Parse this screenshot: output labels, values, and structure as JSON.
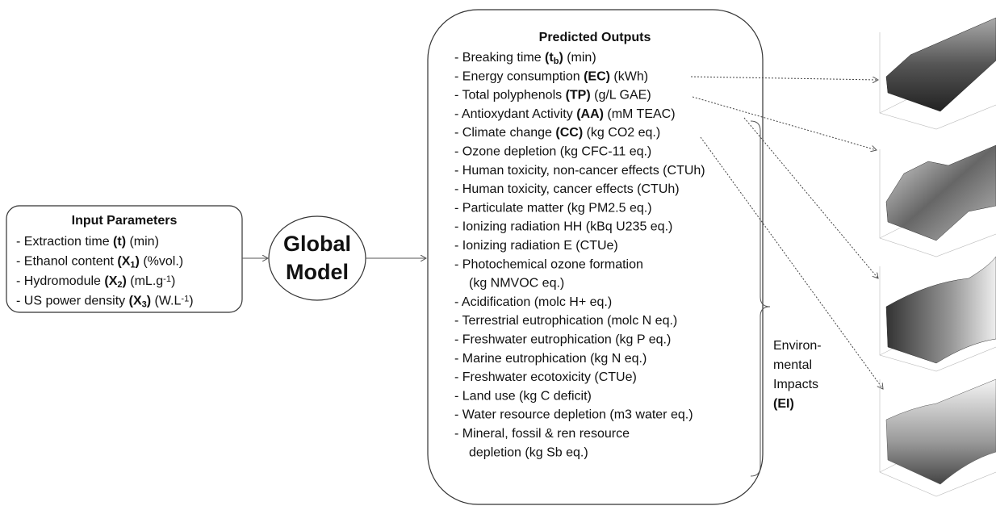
{
  "input": {
    "title": "Input Parameters",
    "items": [
      [
        [
          {
            "text": "- Extraction time "
          },
          {
            "text": "(t)",
            "style": "bold"
          },
          {
            "text": " (min)"
          }
        ]
      ],
      [
        [
          {
            "text": "- Ethanol content "
          },
          {
            "text": "(X",
            "style": "bold"
          },
          {
            "text": "1",
            "style": "bold-sub"
          },
          {
            "text": ")",
            "style": "bold"
          },
          {
            "text": " (%vol.)"
          }
        ]
      ],
      [
        [
          {
            "text": "- Hydromodule "
          },
          {
            "text": "(X",
            "style": "bold"
          },
          {
            "text": "2",
            "style": "bold-sub"
          },
          {
            "text": ")",
            "style": "bold"
          },
          {
            "text": " (mL.g"
          },
          {
            "text": "-1",
            "style": "sup"
          },
          {
            "text": ")"
          }
        ]
      ],
      [
        [
          {
            "text": "- US power density "
          },
          {
            "text": "(X",
            "style": "bold"
          },
          {
            "text": "3",
            "style": "bold-sub"
          },
          {
            "text": ")",
            "style": "bold"
          },
          {
            "text": " (W.L"
          },
          {
            "text": "-1",
            "style": "sup"
          },
          {
            "text": ")"
          }
        ]
      ]
    ]
  },
  "model": {
    "lines": [
      "Global",
      "Model"
    ]
  },
  "outputs": {
    "title": "Predicted Outputs",
    "items": [
      [
        [
          {
            "text": "- Breaking time "
          },
          {
            "text": "(t",
            "style": "bold"
          },
          {
            "text": "b",
            "style": "bold-sub"
          },
          {
            "text": ")",
            "style": "bold"
          },
          {
            "text": " (min)"
          }
        ]
      ],
      [
        [
          {
            "text": "- Energy consumption "
          },
          {
            "text": "(EC)",
            "style": "bold"
          },
          {
            "text": " (kWh)"
          }
        ]
      ],
      [
        [
          {
            "text": "- Total polyphenols "
          },
          {
            "text": "(TP)",
            "style": "bold"
          },
          {
            "text": " (g/L GAE)"
          }
        ]
      ],
      [
        [
          {
            "text": "- Antioxydant Activity "
          },
          {
            "text": "(AA)",
            "style": "bold"
          },
          {
            "text": " (mM TEAC)"
          }
        ]
      ],
      [
        [
          {
            "text": "- Climate change "
          },
          {
            "text": "(CC)",
            "style": "bold"
          },
          {
            "text": " (kg CO2 eq.)"
          }
        ]
      ],
      [
        [
          {
            "text": "- Ozone depletion (kg CFC-11 eq.)"
          }
        ]
      ],
      [
        [
          {
            "text": "- Human toxicity, non-cancer effects (CTUh)"
          }
        ]
      ],
      [
        [
          {
            "text": "- Human toxicity, cancer effects (CTUh)"
          }
        ]
      ],
      [
        [
          {
            "text": "- Particulate matter (kg PM2.5 eq.)"
          }
        ]
      ],
      [
        [
          {
            "text": "- Ionizing radiation HH (kBq U235 eq.)"
          }
        ]
      ],
      [
        [
          {
            "text": "- Ionizing radiation E (CTUe)"
          }
        ]
      ],
      [
        [
          {
            "text": "- Photochemical ozone formation"
          }
        ],
        [
          {
            "text": "(kg NMVOC eq.)"
          }
        ]
      ],
      [
        [
          {
            "text": "- Acidification (molc H+ eq.)"
          }
        ]
      ],
      [
        [
          {
            "text": "- Terrestrial eutrophication (molc N eq.)"
          }
        ]
      ],
      [
        [
          {
            "text": "- Freshwater eutrophication (kg P eq.)"
          }
        ]
      ],
      [
        [
          {
            "text": "- Marine eutrophication (kg N eq.)"
          }
        ]
      ],
      [
        [
          {
            "text": "- Freshwater ecotoxicity (CTUe)"
          }
        ]
      ],
      [
        [
          {
            "text": "- Land use (kg C deficit)"
          }
        ]
      ],
      [
        [
          {
            "text": "- Water resource depletion (m3 water eq.)"
          }
        ]
      ],
      [
        [
          {
            "text": "- Mineral, fossil & ren resource"
          }
        ],
        [
          {
            "text": "depletion (kg Sb eq.)"
          }
        ]
      ]
    ]
  },
  "impacts": {
    "lines": [
      [
        {
          "text": "Environ-"
        }
      ],
      [
        {
          "text": "mental"
        }
      ],
      [
        {
          "text": "Impacts"
        }
      ],
      [
        {
          "text": "(EI)",
          "style": "bold"
        }
      ]
    ]
  }
}
